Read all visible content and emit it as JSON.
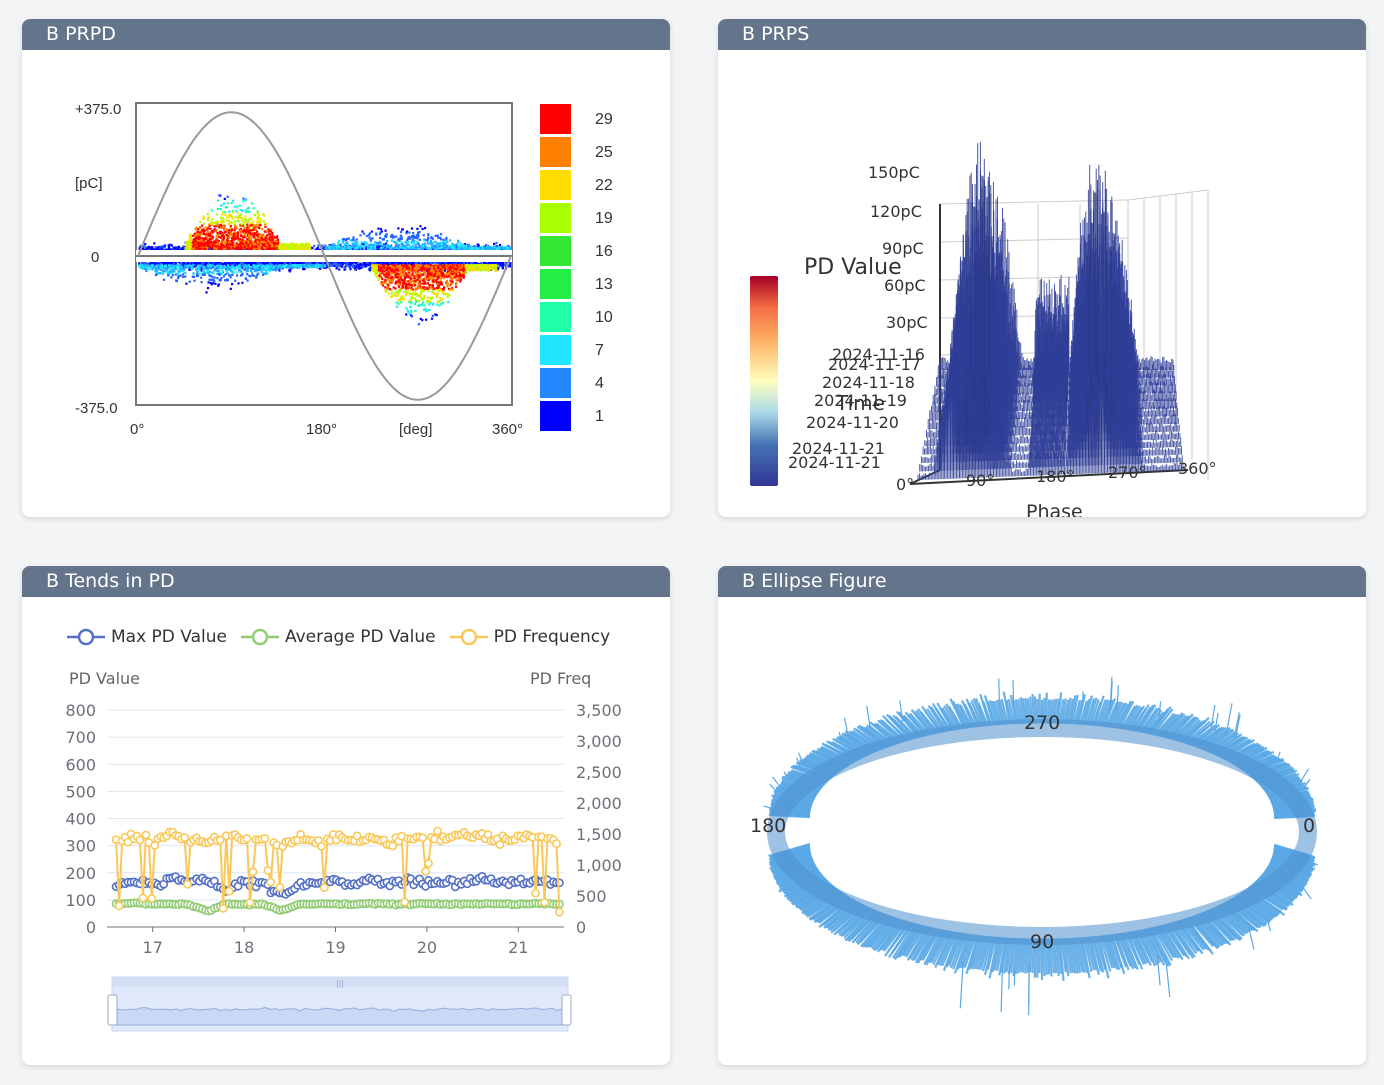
{
  "panels": {
    "prpd": {
      "title": "B PRPD"
    },
    "prps": {
      "title": "B PRPS"
    },
    "trends": {
      "title": "B Tends in PD"
    },
    "ellipse": {
      "title": "B Ellipse Figure"
    }
  },
  "prpd": {
    "y_top": "+375.0",
    "y_unit": "[pC]",
    "y_zero": "0",
    "y_bottom": "-375.0",
    "x_labels": [
      "0°",
      "180°",
      "[deg]",
      "360°"
    ],
    "scale_colors": [
      "#ff0000",
      "#ff7f00",
      "#ffdd00",
      "#aaff00",
      "#33e633",
      "#22ee44",
      "#22ffaa",
      "#22e6ff",
      "#2288ff",
      "#0000ff"
    ],
    "scale_labels": [
      "29",
      "25",
      "22",
      "19",
      "16",
      "13",
      "10",
      "7",
      "4",
      "1"
    ]
  },
  "prps": {
    "title": "PD Value",
    "y_ticks": [
      "150pC",
      "120pC",
      "90pC",
      "60pC",
      "30pC"
    ],
    "time_label": "Time",
    "time_ticks": [
      "2024-11-16",
      "2024-11-17",
      "2024-11-18",
      "2024-11-19",
      "2024-11-20",
      "2024-11-21",
      "2024-11-21"
    ],
    "x_ticks": [
      "0°",
      "90°",
      "180°",
      "270°",
      "360°"
    ],
    "x_title": "Phase"
  },
  "trends": {
    "legend": [
      {
        "label": "Max PD Value",
        "color": "#5470c6"
      },
      {
        "label": "Average PD Value",
        "color": "#91cc75"
      },
      {
        "label": "PD Frequency",
        "color": "#fac858"
      }
    ],
    "y_left_title": "PD Value",
    "y_right_title": "PD Freq",
    "y_left_ticks": [
      "800",
      "700",
      "600",
      "500",
      "400",
      "300",
      "200",
      "100",
      "0"
    ],
    "y_right_ticks": [
      "3,500",
      "3,000",
      "2,500",
      "2,000",
      "1,500",
      "1,000",
      "500",
      "0"
    ],
    "x_ticks": [
      "17",
      "18",
      "19",
      "20",
      "21"
    ]
  },
  "ellipse": {
    "labels": {
      "top": "270",
      "left": "180",
      "right": "0",
      "bottom": "90"
    },
    "color": "#5aa8e6"
  },
  "chart_data": [
    {
      "type": "scatter",
      "title": "B PRPD",
      "ylabel": "[pC]",
      "xlabel": "[deg]",
      "xlim": [
        0,
        360
      ],
      "ylim": [
        -375,
        375
      ],
      "clusters": [
        {
          "phase_range": [
            45,
            165
          ],
          "pc_range": [
            20,
            170
          ],
          "peak_count": 29
        },
        {
          "phase_range": [
            180,
            360
          ],
          "pc_range": [
            20,
            90
          ],
          "peak_count": 10
        },
        {
          "phase_range": [
            0,
            180
          ],
          "pc_range": [
            -90,
            -20
          ],
          "peak_count": 10
        },
        {
          "phase_range": [
            225,
            345
          ],
          "pc_range": [
            -170,
            -20
          ],
          "peak_count": 29
        }
      ]
    },
    {
      "type": "bar",
      "title": "PD Value",
      "xlabel": "Phase",
      "ylabel": "",
      "xlim": [
        0,
        360
      ],
      "ylim": [
        0,
        150
      ],
      "clusters": [
        {
          "phase_range": [
            20,
            130
          ],
          "max_pc": 135
        },
        {
          "phase_range": [
            200,
            310
          ],
          "max_pc": 130
        }
      ]
    },
    {
      "type": "line",
      "title": "B Tends in PD",
      "x": [
        16.6,
        16.8,
        17.0,
        17.2,
        17.4,
        17.6,
        17.8,
        18.0,
        18.2,
        18.4,
        18.6,
        18.8,
        19.0,
        19.2,
        19.4,
        19.6,
        19.8,
        20.0,
        20.2,
        20.4,
        20.6,
        20.8,
        21.0,
        21.2,
        21.4
      ],
      "ylabel": "PD Value",
      "y2label": "PD Freq",
      "ylim": [
        0,
        800
      ],
      "y2lim": [
        0,
        3500
      ],
      "series": [
        {
          "name": "Max PD Value",
          "axis": "left",
          "values": [
            160,
            170,
            150,
            180,
            165,
            175,
            140,
            170,
            160,
            120,
            150,
            165,
            170,
            160,
            175,
            165,
            170,
            160,
            165,
            170,
            180,
            160,
            165,
            170,
            160
          ]
        },
        {
          "name": "Average PD Value",
          "axis": "left",
          "values": [
            85,
            88,
            84,
            86,
            82,
            58,
            85,
            83,
            86,
            60,
            84,
            86,
            85,
            84,
            86,
            85,
            84,
            86,
            85,
            84,
            86,
            85,
            84,
            86,
            85
          ]
        },
        {
          "name": "PD Frequency",
          "axis": "right",
          "values": [
            1400,
            1450,
            1350,
            1500,
            1420,
            1380,
            1460,
            1400,
            1440,
            1300,
            1420,
            1380,
            1450,
            1400,
            1420,
            1360,
            1440,
            1480,
            1420,
            1500,
            1450,
            1380,
            1420,
            1460,
            1400
          ]
        }
      ]
    },
    {
      "type": "line",
      "title": "B Ellipse Figure",
      "phase_labels": [
        "270",
        "180",
        "0",
        "90"
      ]
    }
  ]
}
